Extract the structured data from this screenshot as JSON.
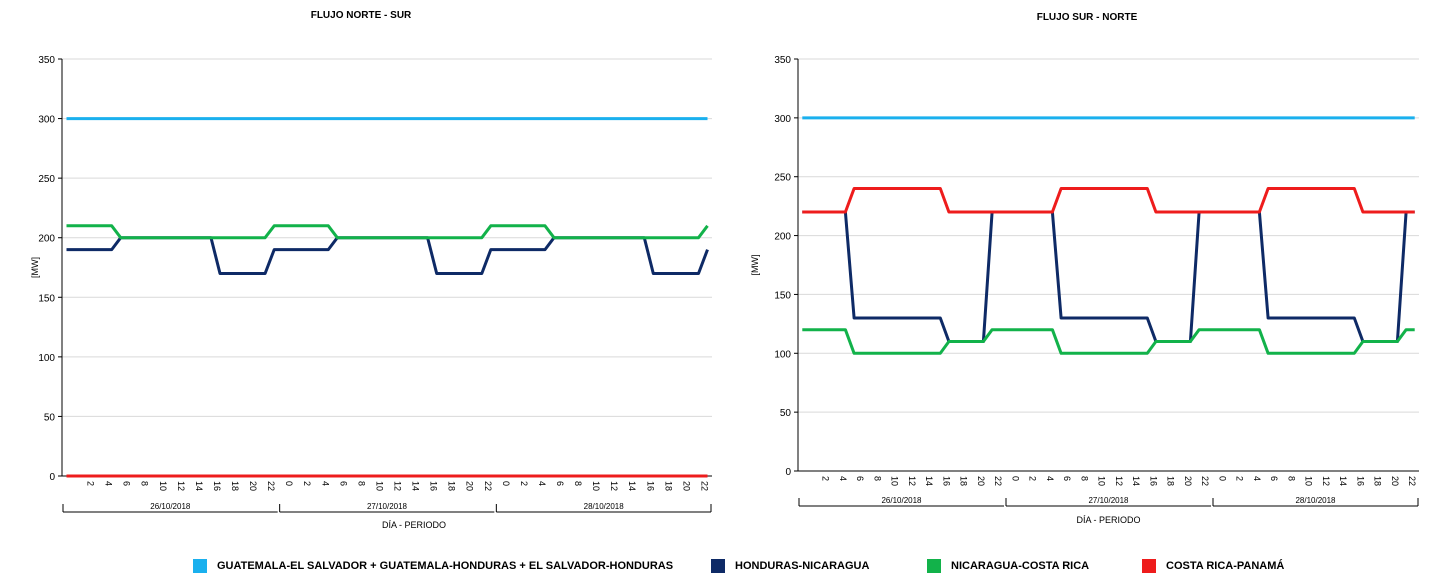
{
  "colors": {
    "gt_sv_hn": "#1AB0EE",
    "hn_ni": "#0E2A66",
    "ni_cr": "#12B24A",
    "cr_pa": "#EE1C1C",
    "grid": "#D9D9D9",
    "axis": "#000000"
  },
  "legend": [
    {
      "key": "gt_sv_hn",
      "label": "GUATEMALA-EL SALVADOR + GUATEMALA-HONDURAS + EL SALVADOR-HONDURAS"
    },
    {
      "key": "hn_ni",
      "label": "HONDURAS-NICARAGUA"
    },
    {
      "key": "ni_cr",
      "label": "NICARAGUA-COSTA RICA"
    },
    {
      "key": "cr_pa",
      "label": "COSTA RICA-PANAMÁ"
    }
  ],
  "chart_data": [
    {
      "type": "line",
      "title": "FLUJO NORTE - SUR",
      "xlabel": "DÍA - PERIODO",
      "ylabel": "[MW]",
      "ylim": [
        0,
        350
      ],
      "yticks": [
        0,
        50,
        100,
        150,
        200,
        250,
        300,
        350
      ],
      "grid": true,
      "hour_labels": [
        "0",
        "2",
        "4",
        "6",
        "8",
        "10",
        "12",
        "14",
        "16",
        "18",
        "20",
        "22"
      ],
      "days": [
        "26/10/2018",
        "27/10/2018",
        "28/10/2018"
      ],
      "series": [
        {
          "key": "gt_sv_hn",
          "name": "GUATEMALA-EL SALVADOR + GUATEMALA-HONDURAS + EL SALVADOR-HONDURAS",
          "values": [
            300,
            300,
            300,
            300,
            300,
            300,
            300,
            300,
            300,
            300,
            300,
            300,
            300,
            300,
            300,
            300,
            300,
            300,
            300,
            300,
            300,
            300,
            300,
            300,
            300,
            300,
            300,
            300,
            300,
            300,
            300,
            300,
            300,
            300,
            300,
            300,
            300,
            300,
            300,
            300,
            300,
            300,
            300,
            300,
            300,
            300,
            300,
            300,
            300,
            300,
            300,
            300,
            300,
            300,
            300,
            300,
            300,
            300,
            300,
            300,
            300,
            300,
            300,
            300,
            300,
            300,
            300,
            300,
            300,
            300,
            300,
            300
          ]
        },
        {
          "key": "hn_ni",
          "name": "HONDURAS-NICARAGUA",
          "values": [
            190,
            190,
            190,
            190,
            190,
            190,
            200,
            200,
            200,
            200,
            200,
            200,
            200,
            200,
            200,
            200,
            200,
            170,
            170,
            170,
            170,
            170,
            170,
            190,
            190,
            190,
            190,
            190,
            190,
            190,
            200,
            200,
            200,
            200,
            200,
            200,
            200,
            200,
            200,
            200,
            200,
            170,
            170,
            170,
            170,
            170,
            170,
            190,
            190,
            190,
            190,
            190,
            190,
            190,
            200,
            200,
            200,
            200,
            200,
            200,
            200,
            200,
            200,
            200,
            200,
            170,
            170,
            170,
            170,
            170,
            170,
            190
          ]
        },
        {
          "key": "ni_cr",
          "name": "NICARAGUA-COSTA RICA",
          "values": [
            210,
            210,
            210,
            210,
            210,
            210,
            200,
            200,
            200,
            200,
            200,
            200,
            200,
            200,
            200,
            200,
            200,
            200,
            200,
            200,
            200,
            200,
            200,
            210,
            210,
            210,
            210,
            210,
            210,
            210,
            200,
            200,
            200,
            200,
            200,
            200,
            200,
            200,
            200,
            200,
            200,
            200,
            200,
            200,
            200,
            200,
            200,
            210,
            210,
            210,
            210,
            210,
            210,
            210,
            200,
            200,
            200,
            200,
            200,
            200,
            200,
            200,
            200,
            200,
            200,
            200,
            200,
            200,
            200,
            200,
            200,
            210
          ]
        },
        {
          "key": "cr_pa",
          "name": "COSTA RICA-PANAMÁ",
          "values": [
            0,
            0,
            0,
            0,
            0,
            0,
            0,
            0,
            0,
            0,
            0,
            0,
            0,
            0,
            0,
            0,
            0,
            0,
            0,
            0,
            0,
            0,
            0,
            0,
            0,
            0,
            0,
            0,
            0,
            0,
            0,
            0,
            0,
            0,
            0,
            0,
            0,
            0,
            0,
            0,
            0,
            0,
            0,
            0,
            0,
            0,
            0,
            0,
            0,
            0,
            0,
            0,
            0,
            0,
            0,
            0,
            0,
            0,
            0,
            0,
            0,
            0,
            0,
            0,
            0,
            0,
            0,
            0,
            0,
            0,
            0,
            0
          ]
        }
      ]
    },
    {
      "type": "line",
      "title": "FLUJO SUR - NORTE",
      "xlabel": "DÍA - PERIODO",
      "ylabel": "[MW]",
      "ylim": [
        0,
        350
      ],
      "yticks": [
        0,
        50,
        100,
        150,
        200,
        250,
        300,
        350
      ],
      "grid": true,
      "hour_labels": [
        "0",
        "2",
        "4",
        "6",
        "8",
        "10",
        "12",
        "14",
        "16",
        "18",
        "20",
        "22"
      ],
      "days": [
        "26/10/2018",
        "27/10/2018",
        "28/10/2018"
      ],
      "series": [
        {
          "key": "gt_sv_hn",
          "name": "GUATEMALA-EL SALVADOR + GUATEMALA-HONDURAS + EL SALVADOR-HONDURAS",
          "values": [
            300,
            300,
            300,
            300,
            300,
            300,
            300,
            300,
            300,
            300,
            300,
            300,
            300,
            300,
            300,
            300,
            300,
            300,
            300,
            300,
            300,
            300,
            300,
            300,
            300,
            300,
            300,
            300,
            300,
            300,
            300,
            300,
            300,
            300,
            300,
            300,
            300,
            300,
            300,
            300,
            300,
            300,
            300,
            300,
            300,
            300,
            300,
            300,
            300,
            300,
            300,
            300,
            300,
            300,
            300,
            300,
            300,
            300,
            300,
            300,
            300,
            300,
            300,
            300,
            300,
            300,
            300,
            300,
            300,
            300,
            300,
            300
          ]
        },
        {
          "key": "hn_ni",
          "name": "HONDURAS-NICARAGUA",
          "values": [
            220,
            220,
            220,
            220,
            220,
            220,
            130,
            130,
            130,
            130,
            130,
            130,
            130,
            130,
            130,
            130,
            130,
            110,
            110,
            110,
            110,
            110,
            220,
            220,
            220,
            220,
            220,
            220,
            220,
            220,
            130,
            130,
            130,
            130,
            130,
            130,
            130,
            130,
            130,
            130,
            130,
            110,
            110,
            110,
            110,
            110,
            220,
            220,
            220,
            220,
            220,
            220,
            220,
            220,
            130,
            130,
            130,
            130,
            130,
            130,
            130,
            130,
            130,
            130,
            130,
            110,
            110,
            110,
            110,
            110,
            220,
            220
          ]
        },
        {
          "key": "ni_cr",
          "name": "NICARAGUA-COSTA RICA",
          "values": [
            120,
            120,
            120,
            120,
            120,
            120,
            100,
            100,
            100,
            100,
            100,
            100,
            100,
            100,
            100,
            100,
            100,
            110,
            110,
            110,
            110,
            110,
            120,
            120,
            120,
            120,
            120,
            120,
            120,
            120,
            100,
            100,
            100,
            100,
            100,
            100,
            100,
            100,
            100,
            100,
            100,
            110,
            110,
            110,
            110,
            110,
            120,
            120,
            120,
            120,
            120,
            120,
            120,
            120,
            100,
            100,
            100,
            100,
            100,
            100,
            100,
            100,
            100,
            100,
            100,
            110,
            110,
            110,
            110,
            110,
            120,
            120
          ]
        },
        {
          "key": "cr_pa",
          "name": "COSTA RICA-PANAMÁ",
          "values": [
            220,
            220,
            220,
            220,
            220,
            220,
            240,
            240,
            240,
            240,
            240,
            240,
            240,
            240,
            240,
            240,
            240,
            220,
            220,
            220,
            220,
            220,
            220,
            220,
            220,
            220,
            220,
            220,
            220,
            220,
            240,
            240,
            240,
            240,
            240,
            240,
            240,
            240,
            240,
            240,
            240,
            220,
            220,
            220,
            220,
            220,
            220,
            220,
            220,
            220,
            220,
            220,
            220,
            220,
            240,
            240,
            240,
            240,
            240,
            240,
            240,
            240,
            240,
            240,
            240,
            220,
            220,
            220,
            220,
            220,
            220,
            220
          ]
        }
      ]
    }
  ]
}
